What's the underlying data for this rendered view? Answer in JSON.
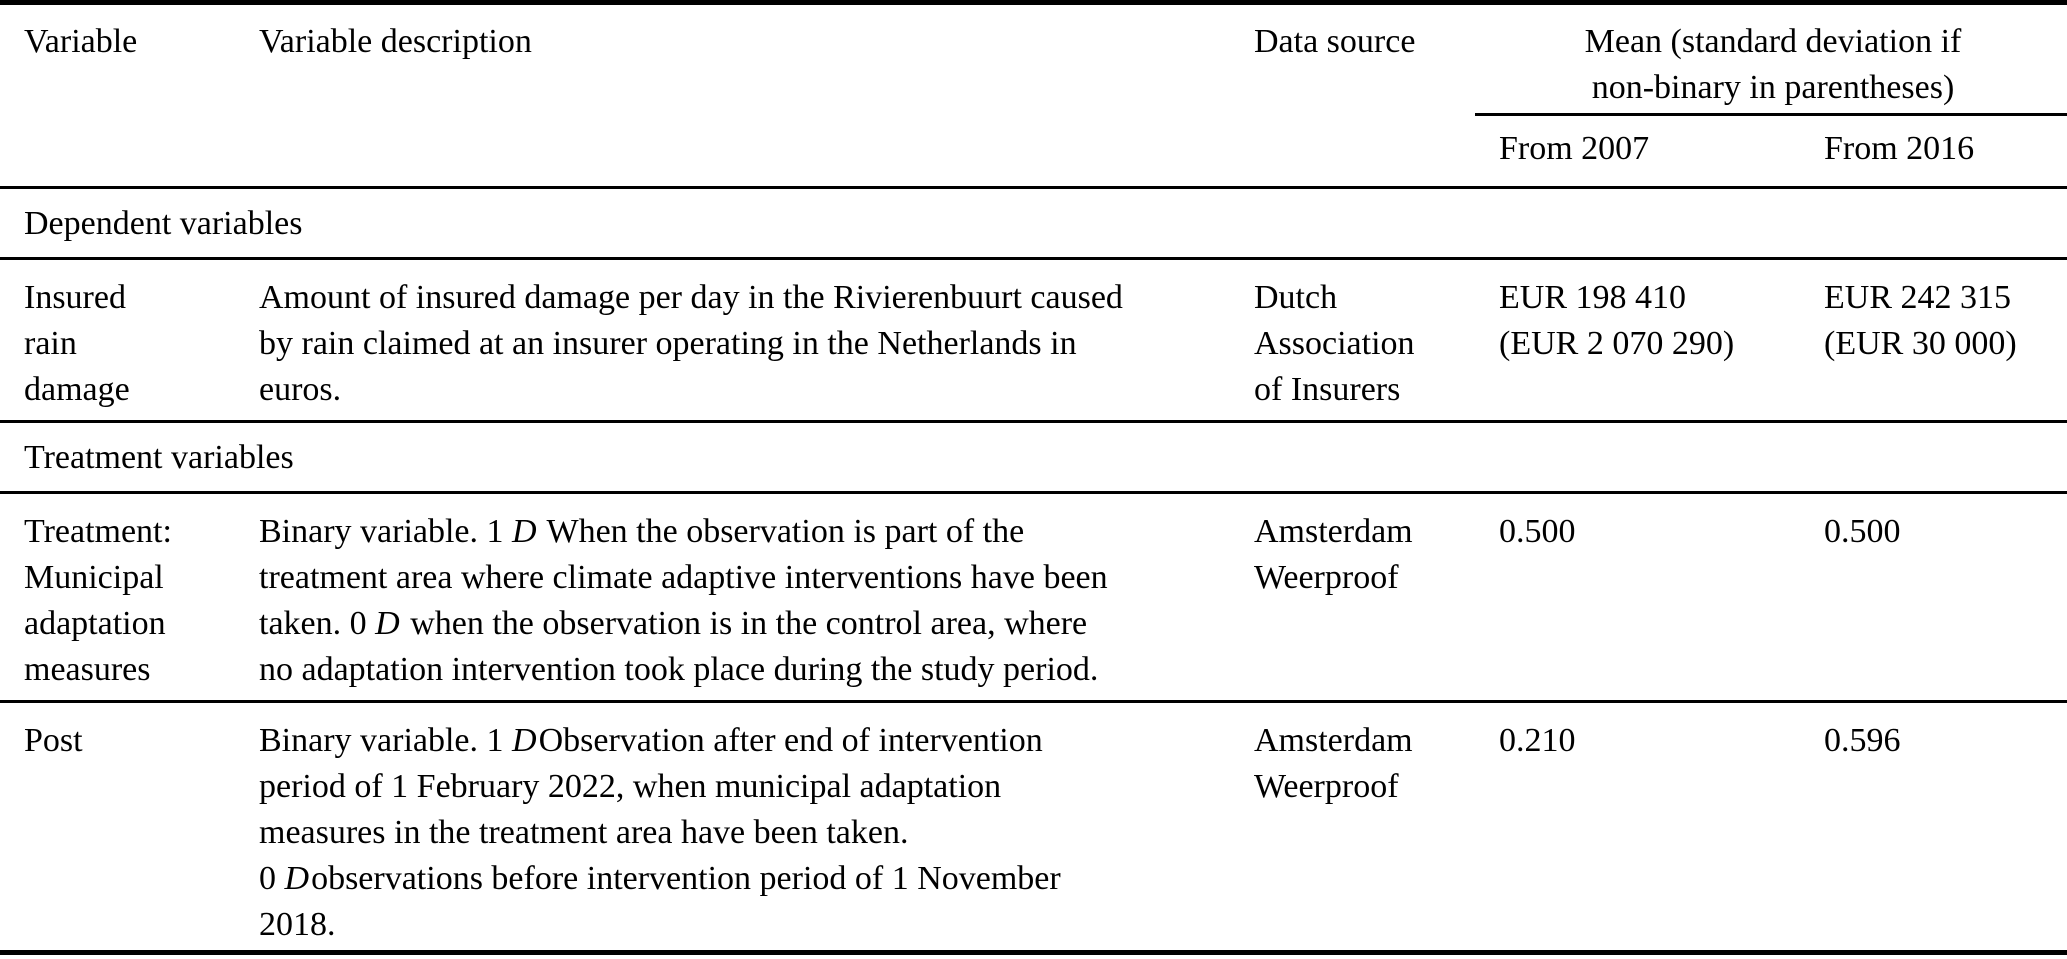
{
  "table": {
    "header": {
      "variable": "Variable",
      "description": "Variable description",
      "source": "Data source",
      "mean_group": "Mean (standard deviation if\nnon-binary in parentheses)",
      "from_2007": "From 2007",
      "from_2016": "From 2016"
    },
    "sections": [
      {
        "title": "Dependent variables"
      },
      {
        "title": "Treatment variables"
      }
    ],
    "rows": [
      {
        "variable": "Insured\nrain\ndamage",
        "description": "Amount of insured damage per day in the Rivierenbuurt caused\nby rain claimed at an insurer operating in the Netherlands in\neuros.",
        "source": "Dutch\nAssociation\nof Insurers",
        "from_2007": "EUR 198 410\n(EUR 2 070 290)",
        "from_2016": "EUR 242 315\n(EUR 30 000)"
      },
      {
        "variable": "Treatment:\nMunicipal\nadaptation\nmeasures",
        "description": "Binary variable. 1 𝒟 When the observation is part of the\ntreatment area where climate adaptive interventions have been\ntaken. 0 𝒟 when the observation is in the control area, where\nno adaptation intervention took place during the study period.",
        "source": "Amsterdam\nWeerproof",
        "from_2007": "0.500",
        "from_2016": "0.500"
      },
      {
        "variable": "Post",
        "description": "Binary variable. 1 𝒟Observation after end of intervention\nperiod of 1 February 2022, when municipal adaptation\nmeasures in the treatment area have been taken.\n0 𝒟observations before intervention period of 1 November\n2018.",
        "source": "Amsterdam\nWeerproof",
        "from_2007": "0.210",
        "from_2016": "0.596"
      }
    ]
  },
  "colors": {
    "text": "#000000",
    "rule": "#000000",
    "background": "#ffffff"
  }
}
